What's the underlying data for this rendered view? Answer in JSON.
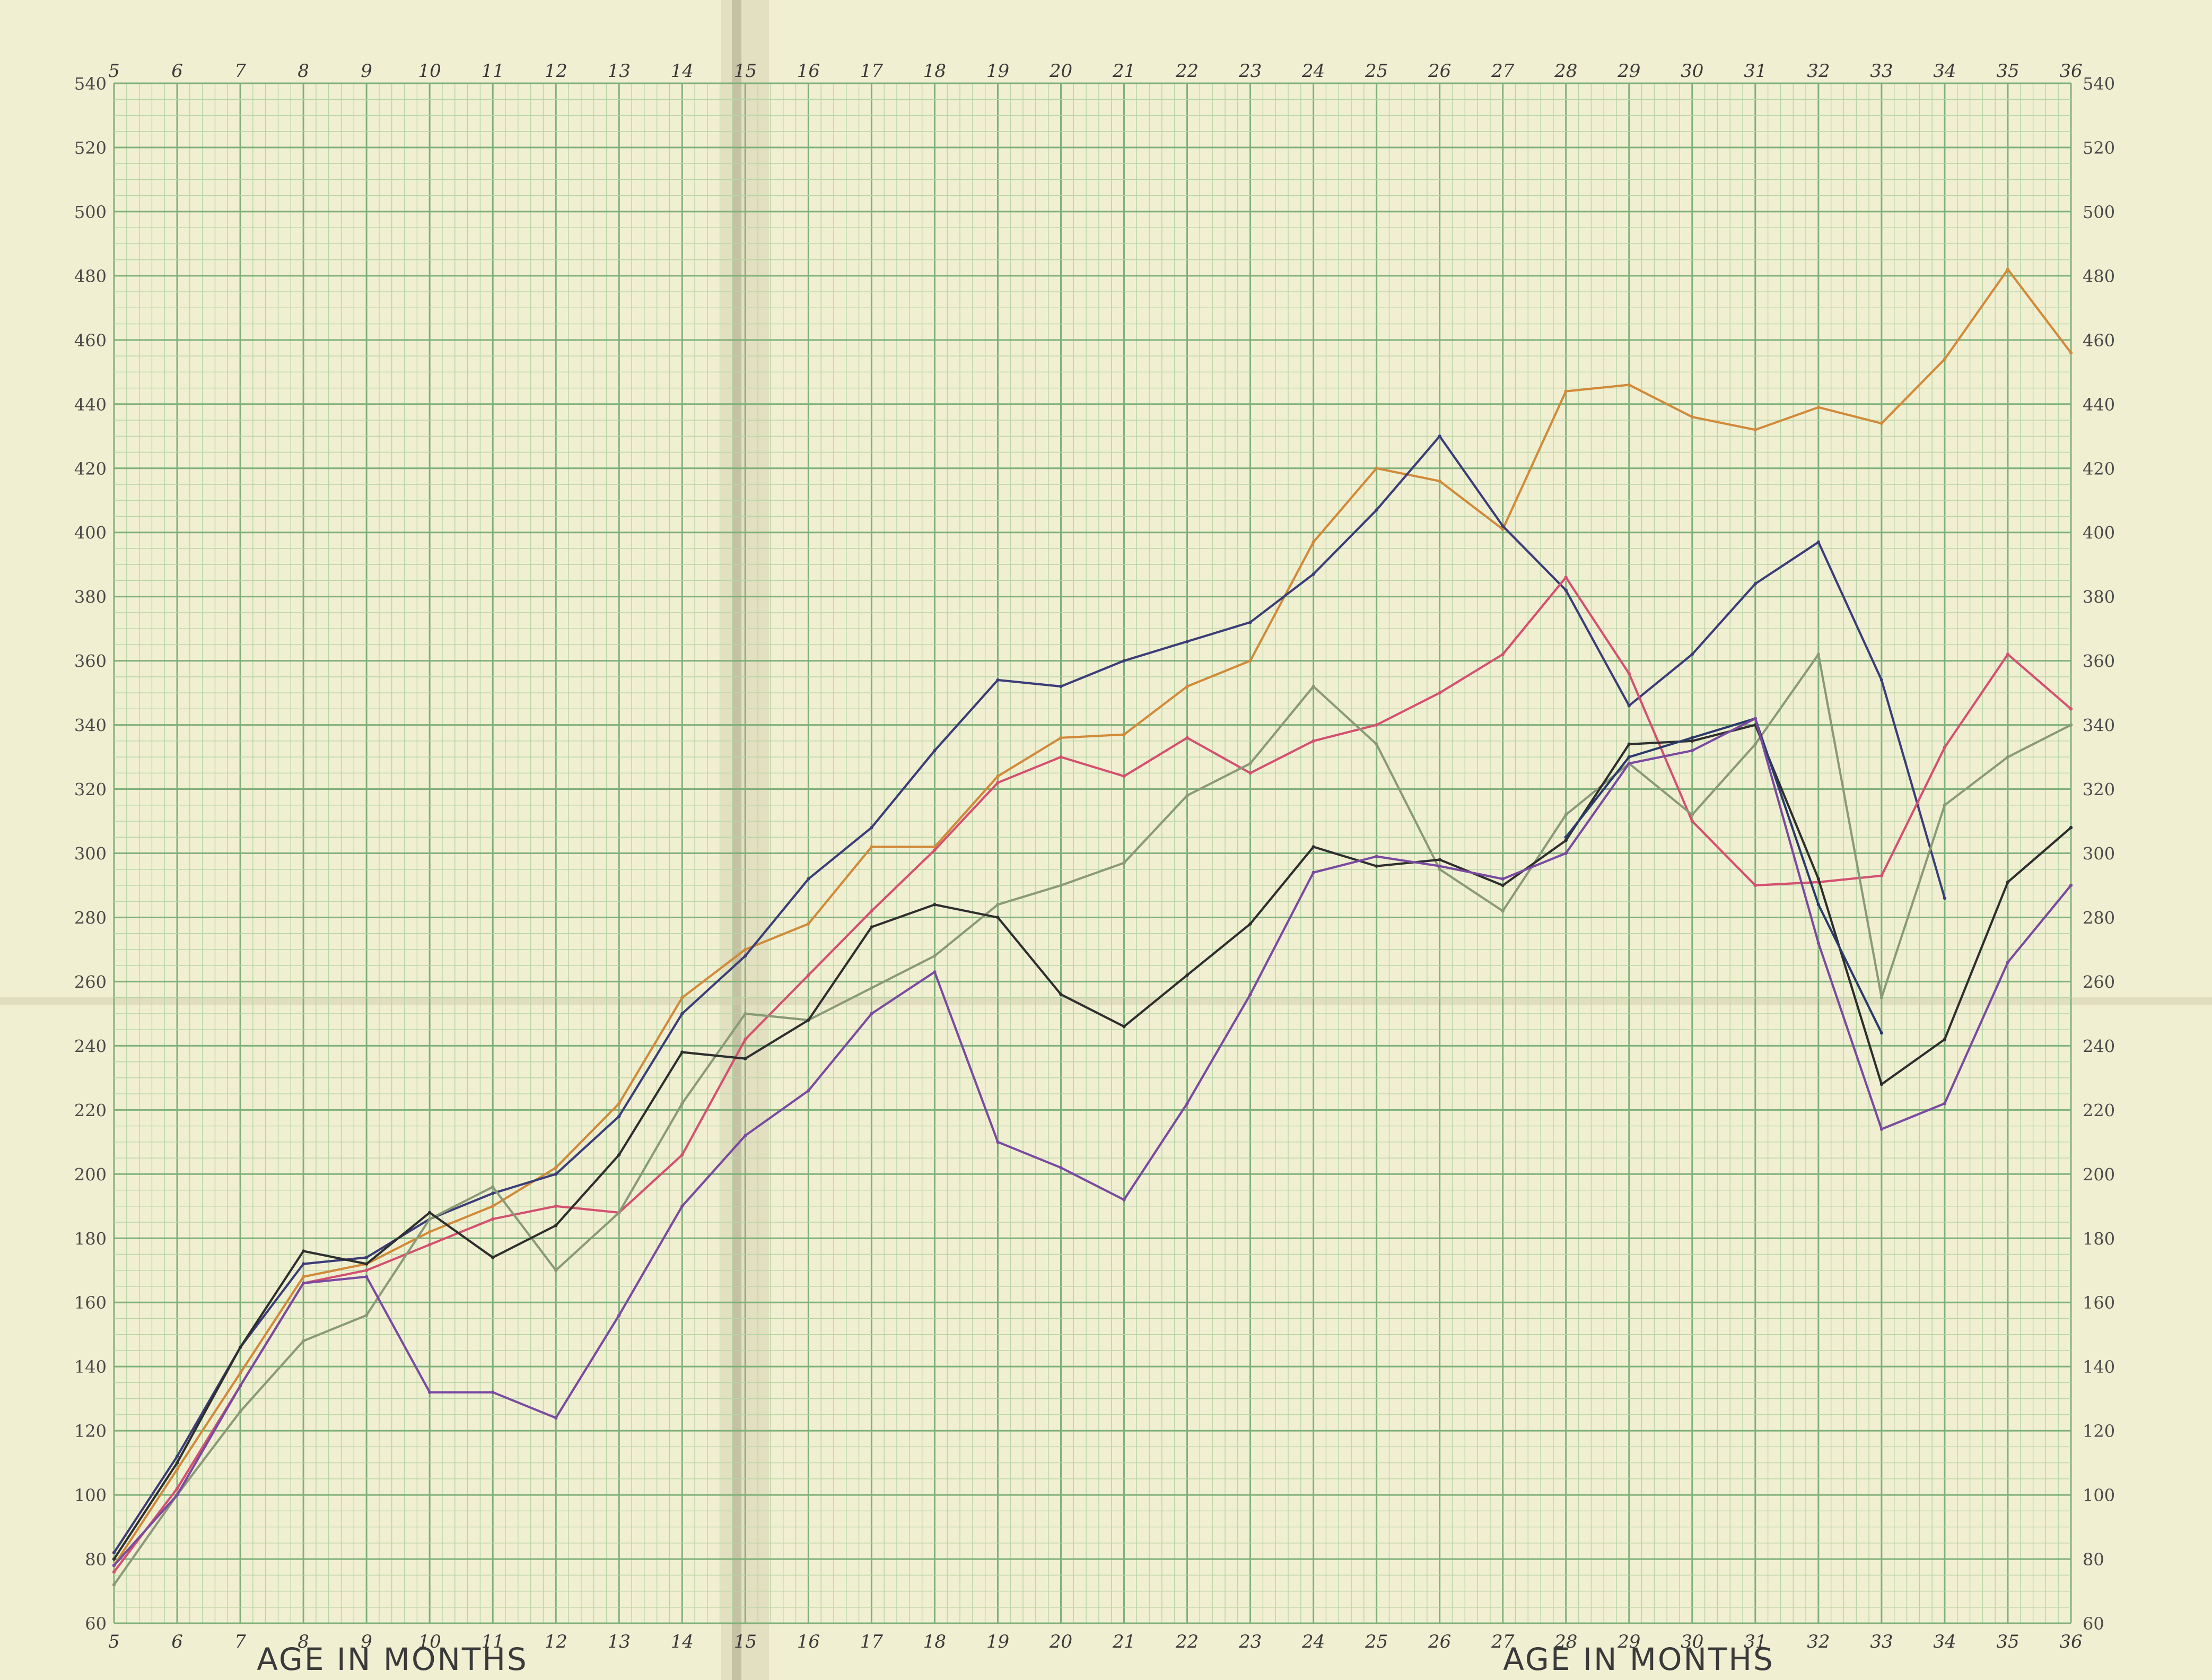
{
  "chart_data": {
    "type": "line",
    "xlabel": "AGE IN MONTHS",
    "ylabel": "",
    "xlim": [
      5,
      36
    ],
    "ylim": [
      60,
      540
    ],
    "x_ticks": [
      5,
      6,
      7,
      8,
      9,
      10,
      11,
      12,
      13,
      14,
      15,
      16,
      17,
      18,
      19,
      20,
      21,
      22,
      23,
      24,
      25,
      26,
      27,
      28,
      29,
      30,
      31,
      32,
      33,
      34,
      35,
      36
    ],
    "y_ticks": [
      60,
      80,
      100,
      120,
      140,
      160,
      180,
      200,
      220,
      240,
      260,
      280,
      300,
      320,
      340,
      360,
      380,
      400,
      420,
      440,
      460,
      480,
      500,
      520,
      540
    ],
    "grid": true,
    "series": [
      {
        "color": "#d08a3a",
        "x": [
          5,
          6,
          7,
          8,
          9,
          10,
          11,
          12,
          13,
          14,
          15,
          16,
          17,
          18,
          19,
          20,
          21,
          22,
          23,
          24,
          25,
          26,
          27,
          28,
          29,
          30,
          31,
          32,
          33,
          34,
          35,
          36
        ],
        "values": [
          78,
          108,
          138,
          168,
          172,
          182,
          190,
          202,
          222,
          255,
          270,
          278,
          302,
          302,
          324,
          336,
          337,
          352,
          360,
          397,
          420,
          416,
          401,
          444,
          446,
          436,
          432,
          439,
          434,
          454,
          482,
          456
        ]
      },
      {
        "color": "#3b3d78",
        "x": [
          5,
          6,
          7,
          8,
          9,
          10,
          11,
          12,
          13,
          14,
          15,
          16,
          17,
          18,
          19,
          20,
          21,
          22,
          23,
          24,
          25,
          26,
          27,
          28,
          29,
          30,
          31,
          32,
          33,
          34
        ],
        "values": [
          82,
          112,
          146,
          172,
          174,
          186,
          194,
          200,
          218,
          250,
          268,
          292,
          308,
          332,
          354,
          352,
          360,
          366,
          372,
          387,
          407,
          430,
          402,
          382,
          346,
          362,
          384,
          397,
          354,
          286
        ]
      },
      {
        "color": "#d45070",
        "x": [
          5,
          6,
          7,
          8,
          9,
          10,
          11,
          12,
          13,
          14,
          15,
          16,
          17,
          18,
          19,
          20,
          21,
          22,
          23,
          24,
          25,
          26,
          27,
          28,
          29,
          30,
          31,
          32,
          33,
          34,
          35,
          36
        ],
        "values": [
          76,
          102,
          134,
          166,
          170,
          178,
          186,
          190,
          188,
          206,
          242,
          262,
          282,
          301,
          322,
          330,
          324,
          336,
          325,
          335,
          340,
          350,
          362,
          386,
          356,
          310,
          290,
          291,
          293,
          333,
          362,
          345
        ]
      },
      {
        "color": "#8a9a78",
        "x": [
          5,
          6,
          7,
          8,
          9,
          10,
          11,
          12,
          13,
          14,
          15,
          16,
          17,
          18,
          19,
          20,
          21,
          22,
          23,
          24,
          25,
          26,
          27,
          28,
          29,
          30,
          31,
          32,
          33,
          34,
          35,
          36
        ],
        "values": [
          72,
          100,
          126,
          148,
          156,
          186,
          196,
          170,
          188,
          222,
          250,
          248,
          258,
          268,
          284,
          290,
          297,
          318,
          328,
          352,
          334,
          295,
          282,
          312,
          328,
          312,
          334,
          362,
          255,
          315,
          330,
          340
        ]
      },
      {
        "color": "#2e2e2e",
        "x": [
          5,
          6,
          7,
          8,
          9,
          10,
          11,
          12,
          13,
          14,
          15,
          16,
          17,
          18,
          19,
          20,
          21,
          22,
          23,
          24,
          25,
          26,
          27,
          28,
          29,
          30,
          31,
          32,
          33,
          34,
          35,
          36
        ],
        "values": [
          80,
          110,
          146,
          176,
          172,
          188,
          174,
          184,
          206,
          238,
          236,
          248,
          277,
          284,
          280,
          256,
          246,
          262,
          278,
          302,
          296,
          298,
          290,
          304,
          334,
          335,
          340,
          292,
          228,
          242,
          291,
          308
        ]
      },
      {
        "color": "#2a3a6a",
        "x": [
          28,
          29,
          30,
          31,
          32,
          33
        ],
        "values": [
          305,
          330,
          336,
          342,
          284,
          244
        ]
      },
      {
        "color": "#7a4aa0",
        "x": [
          5,
          6,
          7,
          8,
          9,
          10,
          11,
          12,
          13,
          14,
          15,
          16,
          17,
          18,
          19,
          20,
          21,
          22,
          23,
          24,
          25,
          26,
          27,
          28,
          29,
          30,
          31,
          32,
          33,
          34,
          35,
          36
        ],
        "values": [
          78,
          100,
          134,
          166,
          168,
          132,
          132,
          124,
          156,
          190,
          212,
          226,
          250,
          263,
          210,
          202,
          192,
          222,
          256,
          294,
          299,
          296,
          292,
          300,
          328,
          332,
          342,
          272,
          214,
          222,
          266,
          290
        ]
      }
    ]
  }
}
